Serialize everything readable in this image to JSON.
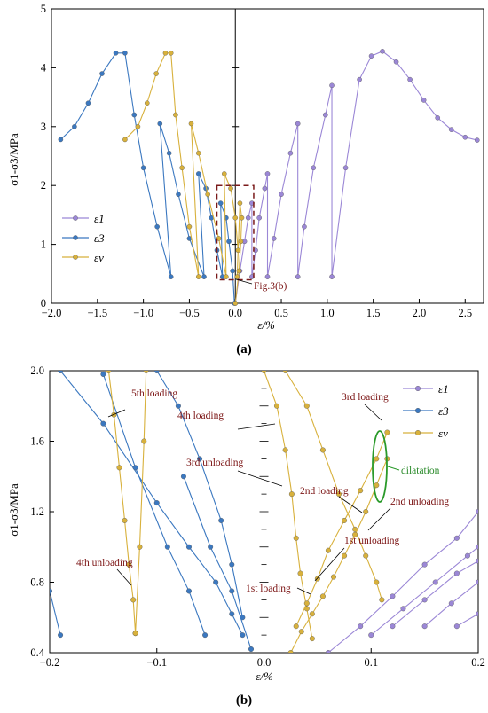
{
  "chart_data": [
    {
      "panel": "(a)",
      "type": "line",
      "xlabel": "ε/%",
      "ylabel": "σ1-σ3/MPa",
      "xlim": [
        -2.0,
        2.7
      ],
      "ylim": [
        0,
        5
      ],
      "xticks": [
        "−2.0",
        "−1.5",
        "−1.0",
        "−0.5",
        "0.0",
        "0.5",
        "1.0",
        "1.5",
        "2.0",
        "2.5"
      ],
      "yticks": [
        "0",
        "1",
        "2",
        "3",
        "4",
        "5"
      ],
      "legend": [
        "ε1",
        "ε3",
        "εv"
      ],
      "legend_position": "left",
      "annotation": "Fig.3(b)",
      "colors": {
        "e1": "#9b87d6",
        "e3": "#3b78c0",
        "ev": "#d8b13c",
        "box": "#7a1a1a"
      },
      "series": [
        {
          "name": "ε1",
          "color": "#9b87d6",
          "x": [
            0.0,
            0.05,
            0.1,
            0.14,
            0.18,
            0.18,
            0.22,
            0.26,
            0.32,
            0.35,
            0.35,
            0.42,
            0.5,
            0.6,
            0.68,
            0.68,
            0.75,
            0.85,
            0.98,
            1.05,
            1.05,
            1.2,
            1.35,
            1.48,
            1.6,
            1.75,
            1.9,
            2.05,
            2.2,
            2.35,
            2.5,
            2.63
          ],
          "y": [
            0.0,
            0.55,
            1.05,
            1.45,
            1.7,
            0.45,
            0.9,
            1.45,
            1.95,
            2.2,
            0.45,
            1.1,
            1.85,
            2.55,
            3.05,
            0.45,
            1.3,
            2.3,
            3.2,
            3.7,
            0.45,
            2.3,
            3.8,
            4.2,
            4.28,
            4.1,
            3.8,
            3.45,
            3.15,
            2.95,
            2.82,
            2.77
          ]
        },
        {
          "name": "ε3",
          "color": "#3b78c0",
          "x": [
            -0.01,
            -0.03,
            -0.07,
            -0.1,
            -0.16,
            -0.14,
            -0.2,
            -0.26,
            -0.32,
            -0.4,
            -0.34,
            -0.5,
            -0.62,
            -0.72,
            -0.82,
            -0.7,
            -0.85,
            -1.0,
            -1.1,
            -1.2,
            -1.3,
            -1.45,
            -1.6,
            -1.75,
            -1.9
          ],
          "y": [
            0.0,
            0.55,
            1.05,
            1.45,
            1.7,
            0.45,
            0.9,
            1.45,
            1.95,
            2.2,
            0.45,
            1.1,
            1.85,
            2.55,
            3.05,
            0.45,
            1.3,
            2.3,
            3.2,
            4.25,
            4.25,
            3.9,
            3.4,
            3.0,
            2.78
          ]
        },
        {
          "name": "εv",
          "color": "#d8b13c",
          "x": [
            0.0,
            0.04,
            0.06,
            0.07,
            0.05,
            0.02,
            0.03,
            0.0,
            -0.05,
            -0.12,
            -0.1,
            -0.18,
            -0.3,
            -0.4,
            -0.48,
            -0.4,
            -0.5,
            -0.58,
            -0.65,
            -0.7,
            -0.76,
            -0.86,
            -0.96,
            -1.06,
            -1.2
          ],
          "y": [
            0.0,
            0.55,
            1.05,
            1.45,
            1.7,
            0.45,
            0.9,
            1.45,
            1.95,
            2.2,
            0.45,
            1.1,
            1.85,
            2.55,
            3.05,
            0.45,
            1.3,
            2.3,
            3.2,
            4.25,
            4.25,
            3.9,
            3.4,
            3.0,
            2.78
          ]
        }
      ],
      "inset_box": {
        "xlim": [
          -0.2,
          0.2
        ],
        "ylim": [
          0.4,
          2.0
        ]
      }
    },
    {
      "panel": "(b)",
      "type": "line",
      "xlabel": "ε/%",
      "ylabel": "σ1-σ3/MPa",
      "xlim": [
        -0.2,
        0.2
      ],
      "ylim": [
        0.4,
        2.0
      ],
      "xticks": [
        "−0.2",
        "−0.1",
        "0.0",
        "0.1",
        "0.2"
      ],
      "yticks": [
        "0.4",
        "0.8",
        "1.2",
        "1.6",
        "2.0"
      ],
      "legend": [
        "ε1",
        "ε3",
        "εv"
      ],
      "legend_position": "top-right",
      "annotations": [
        "5th loading",
        "4th loading",
        "3rd loading",
        "3rd unloading",
        "2nd loading",
        "2nd unloading",
        "1st unloading",
        "1st loading",
        "4th unloading",
        "dilatation"
      ],
      "series": [
        {
          "name": "ε3",
          "color": "#3b78c0",
          "lines": [
            {
              "x": [
                -0.2,
                -0.19
              ],
              "y": [
                0.75,
                0.5
              ]
            },
            {
              "x": [
                -0.1,
                -0.08,
                -0.06,
                -0.04,
                -0.03,
                -0.02
              ],
              "y": [
                2.0,
                1.8,
                1.5,
                1.15,
                0.9,
                0.6
              ]
            },
            {
              "x": [
                -0.19,
                -0.15,
                -0.1,
                -0.07,
                -0.045,
                -0.03,
                -0.02
              ],
              "y": [
                2.0,
                1.7,
                1.25,
                1.0,
                0.8,
                0.62,
                0.5
              ]
            },
            {
              "x": [
                -0.15,
                -0.12,
                -0.09,
                -0.07,
                -0.055
              ],
              "y": [
                1.98,
                1.45,
                1.0,
                0.75,
                0.5
              ]
            },
            {
              "x": [
                -0.075,
                -0.05,
                -0.03,
                -0.012
              ],
              "y": [
                1.4,
                1.0,
                0.75,
                0.42
              ]
            }
          ]
        },
        {
          "name": "εv",
          "color": "#d8b13c",
          "lines": [
            {
              "x": [
                -0.145,
                -0.14,
                -0.135,
                -0.13,
                -0.126,
                -0.122,
                -0.12
              ],
              "y": [
                2.0,
                1.75,
                1.45,
                1.15,
                0.9,
                0.7,
                0.51
              ]
            },
            {
              "x": [
                -0.12,
                -0.116,
                -0.112,
                -0.11
              ],
              "y": [
                0.51,
                1.0,
                1.6,
                2.0
              ]
            },
            {
              "x": [
                0.0,
                0.012,
                0.02,
                0.026,
                0.03,
                0.034,
                0.04,
                0.045
              ],
              "y": [
                2.0,
                1.8,
                1.55,
                1.3,
                1.05,
                0.85,
                0.65,
                0.48
              ]
            },
            {
              "x": [
                0.03,
                0.04,
                0.05,
                0.06,
                0.075,
                0.09,
                0.105,
                0.115
              ],
              "y": [
                0.55,
                0.68,
                0.82,
                0.98,
                1.15,
                1.32,
                1.5,
                1.65
              ]
            },
            {
              "x": [
                0.02,
                0.04,
                0.055,
                0.07,
                0.085,
                0.095,
                0.105,
                0.11
              ],
              "y": [
                2.0,
                1.8,
                1.55,
                1.3,
                1.1,
                0.95,
                0.8,
                0.7
              ]
            },
            {
              "x": [
                0.025,
                0.035,
                0.045,
                0.055,
                0.065,
                0.075,
                0.085,
                0.095,
                0.105,
                0.115
              ],
              "y": [
                0.4,
                0.52,
                0.62,
                0.72,
                0.83,
                0.95,
                1.07,
                1.2,
                1.35,
                1.5
              ]
            }
          ]
        },
        {
          "name": "ε1",
          "color": "#9b87d6",
          "lines": [
            {
              "x": [
                0.06,
                0.09,
                0.12,
                0.15,
                0.18,
                0.2
              ],
              "y": [
                0.4,
                0.55,
                0.72,
                0.9,
                1.05,
                1.2
              ]
            },
            {
              "x": [
                0.1,
                0.13,
                0.16,
                0.19,
                0.2
              ],
              "y": [
                0.5,
                0.65,
                0.8,
                0.95,
                1.0
              ]
            },
            {
              "x": [
                0.12,
                0.15,
                0.18,
                0.2
              ],
              "y": [
                0.55,
                0.7,
                0.85,
                0.92
              ]
            },
            {
              "x": [
                0.15,
                0.175,
                0.2
              ],
              "y": [
                0.55,
                0.68,
                0.8
              ]
            },
            {
              "x": [
                0.18,
                0.2
              ],
              "y": [
                0.55,
                0.62
              ]
            }
          ]
        }
      ]
    }
  ]
}
